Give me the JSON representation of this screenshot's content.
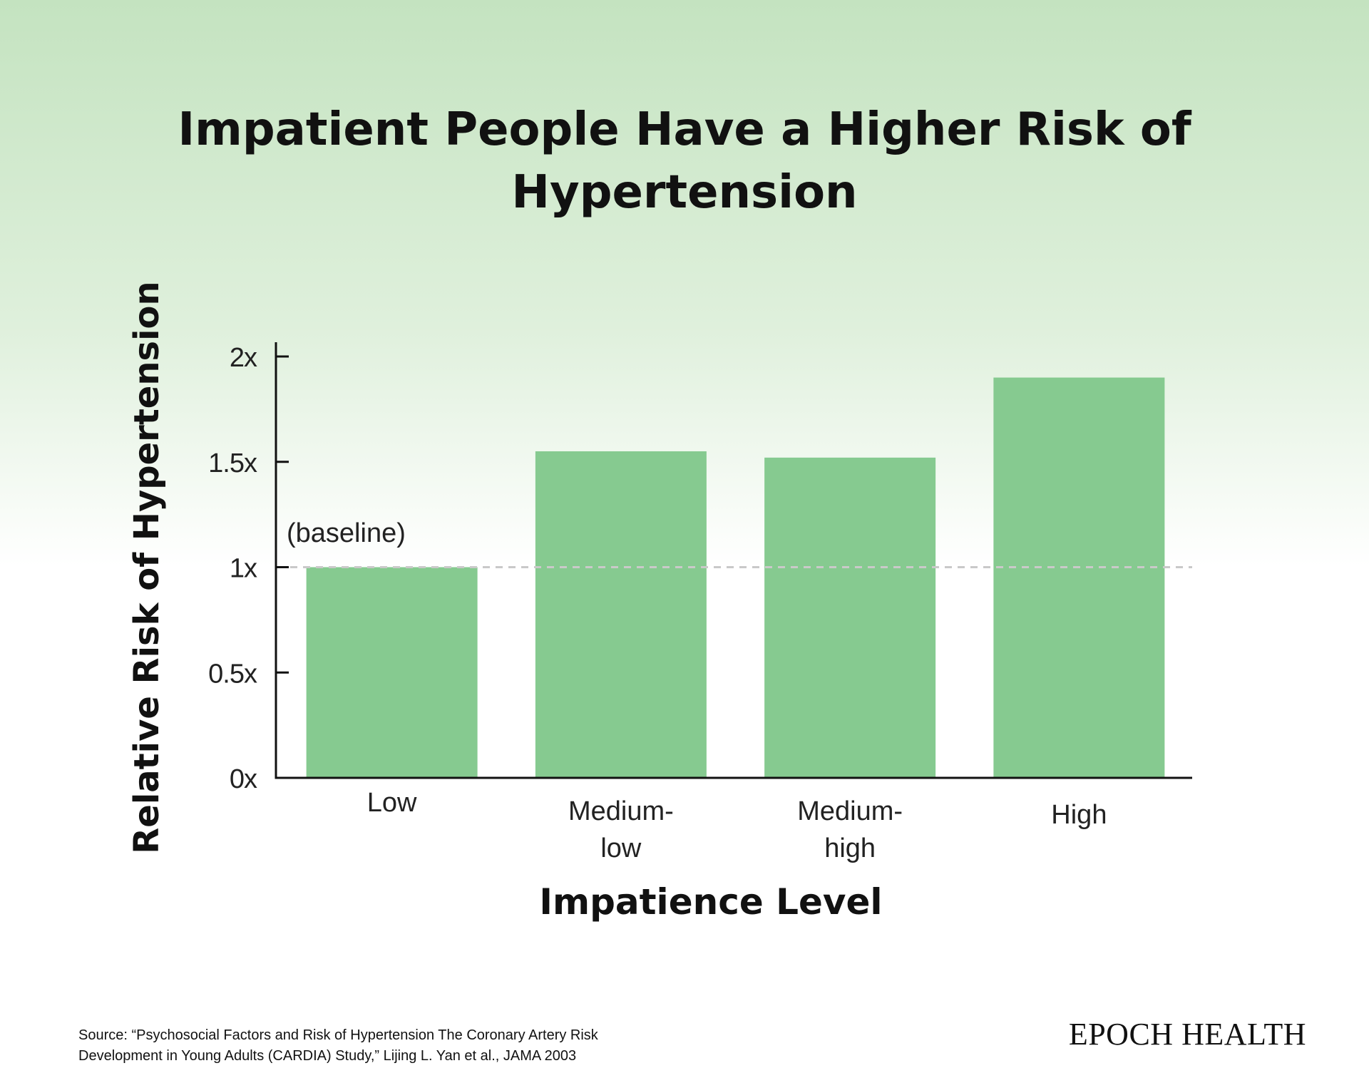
{
  "chart_data": {
    "type": "bar",
    "title": "Impatient People Have a Higher Risk of Hypertension",
    "xlabel": "Impatience Level",
    "ylabel": "Relative Risk of Hypertension",
    "categories": [
      [
        "Low"
      ],
      [
        "Medium-",
        "low"
      ],
      [
        "Medium-",
        "high"
      ],
      [
        "High"
      ]
    ],
    "values": [
      1.0,
      1.55,
      1.52,
      1.9
    ],
    "ylim": [
      0,
      2
    ],
    "yticks": [
      {
        "value": 0,
        "label": "0x"
      },
      {
        "value": 0.5,
        "label": "0.5x"
      },
      {
        "value": 1,
        "label": "1x"
      },
      {
        "value": 1.5,
        "label": "1.5x"
      },
      {
        "value": 2,
        "label": "2x"
      }
    ],
    "reference_line": {
      "value": 1,
      "label": "(baseline)",
      "style": "dashed"
    },
    "bar_color": "#86ca90",
    "grid": false,
    "legend": "none"
  },
  "footer": {
    "source_line1": "Source: “Psychosocial Factors and Risk of Hypertension The Coronary Artery Risk",
    "source_line2": "Development in Young Adults (CARDIA) Study,” Lijing L. Yan et al., JAMA 2003",
    "brand": "EPOCH HEALTH"
  }
}
